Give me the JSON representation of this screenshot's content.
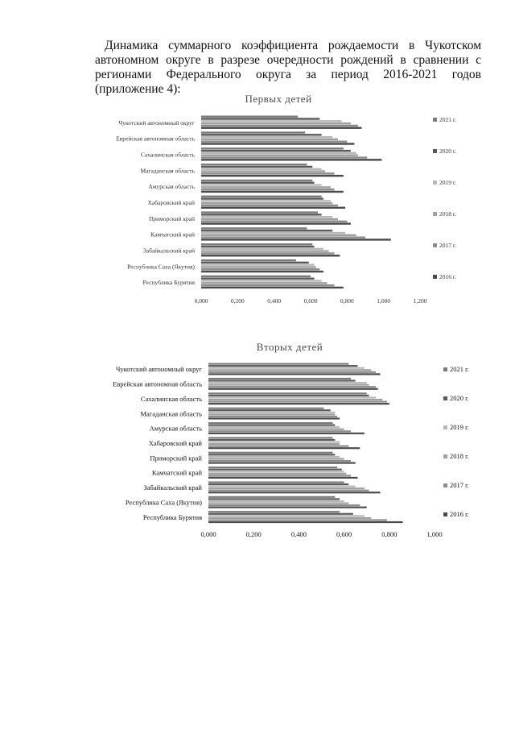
{
  "heading": "Динамика суммарного коэффициента рождаемости в Чукотском автономном округе в разрезе очередности рождений в сравнении с регионами Федерального округа за период 2016-2021 годов (приложение 4):",
  "series_colors": {
    "2021 г.": "#7a7a7a",
    "2020 г.": "#5a5a5a",
    "2019 г.": "#b8b8b8",
    "2018 г.": "#a0a0a0",
    "2017 г.": "#8c8c8c",
    "2016 г.": "#4a4a4a"
  },
  "chart_data": [
    {
      "type": "bar",
      "orientation": "horizontal",
      "title": "Первых детей",
      "categories": [
        "Чукотский автономный округ",
        "Еврейская автономная область",
        "Сахалинская область",
        "Магаданская область",
        "Амурская область",
        "Хабаровский край",
        "Приморский край",
        "Камчатский край",
        "Забайкальский край",
        "Республика Саха (Якутия)",
        "Республика Бурятия"
      ],
      "series": [
        {
          "name": "2021 г.",
          "values": [
            0.53,
            0.57,
            0.78,
            0.58,
            0.61,
            0.66,
            0.64,
            0.58,
            0.61,
            0.52,
            0.6
          ]
        },
        {
          "name": "2020 г.",
          "values": [
            0.65,
            0.66,
            0.82,
            0.61,
            0.62,
            0.67,
            0.66,
            0.72,
            0.62,
            0.59,
            0.62
          ]
        },
        {
          "name": "2019 г.",
          "values": [
            0.77,
            0.72,
            0.85,
            0.66,
            0.66,
            0.71,
            0.72,
            0.79,
            0.67,
            0.62,
            0.66
          ]
        },
        {
          "name": "2018 г.",
          "values": [
            0.82,
            0.75,
            0.86,
            0.68,
            0.71,
            0.72,
            0.75,
            0.85,
            0.7,
            0.63,
            0.69
          ]
        },
        {
          "name": "2017 г.",
          "values": [
            0.86,
            0.8,
            0.91,
            0.73,
            0.73,
            0.75,
            0.8,
            0.9,
            0.73,
            0.65,
            0.73
          ]
        },
        {
          "name": "2016 г.",
          "values": [
            0.88,
            0.84,
            0.99,
            0.78,
            0.78,
            0.79,
            0.82,
            1.04,
            0.76,
            0.67,
            0.78
          ]
        }
      ],
      "xlim": [
        0,
        1.2
      ],
      "xticks": [
        "0,000",
        "0,200",
        "0,400",
        "0,600",
        "0,800",
        "1,000",
        "1,200"
      ],
      "legend": "right"
    },
    {
      "type": "bar",
      "orientation": "horizontal",
      "title": "Вторых детей",
      "categories": [
        "Чукотский автономный округ",
        "Еврейская автономная область",
        "Сахалинская область",
        "Магаданская область",
        "Амурская область",
        "Хабаровский край",
        "Приморский край",
        "Камчатский край",
        "Забайкальский край",
        "Республика Саха (Якутия)",
        "Республика Бурятия"
      ],
      "series": [
        {
          "name": "2021 г.",
          "values": [
            0.62,
            0.63,
            0.7,
            0.51,
            0.55,
            0.55,
            0.55,
            0.57,
            0.6,
            0.56,
            0.58
          ]
        },
        {
          "name": "2020 г.",
          "values": [
            0.66,
            0.65,
            0.71,
            0.54,
            0.56,
            0.56,
            0.56,
            0.59,
            0.62,
            0.58,
            0.64
          ]
        },
        {
          "name": "2019 г.",
          "values": [
            0.69,
            0.7,
            0.74,
            0.56,
            0.58,
            0.58,
            0.58,
            0.6,
            0.65,
            0.6,
            0.69
          ]
        },
        {
          "name": "2018 г.",
          "values": [
            0.72,
            0.71,
            0.77,
            0.56,
            0.6,
            0.58,
            0.6,
            0.61,
            0.69,
            0.62,
            0.72
          ]
        },
        {
          "name": "2017 г.",
          "values": [
            0.74,
            0.74,
            0.79,
            0.57,
            0.63,
            0.62,
            0.63,
            0.63,
            0.71,
            0.67,
            0.79
          ]
        },
        {
          "name": "2016 г.",
          "values": [
            0.76,
            0.75,
            0.8,
            0.58,
            0.69,
            0.67,
            0.65,
            0.66,
            0.76,
            0.7,
            0.86
          ]
        }
      ],
      "xlim": [
        0,
        1.0
      ],
      "xticks": [
        "0,000",
        "0,200",
        "0,400",
        "0,600",
        "0,800",
        "1,000"
      ],
      "legend": "right"
    }
  ]
}
